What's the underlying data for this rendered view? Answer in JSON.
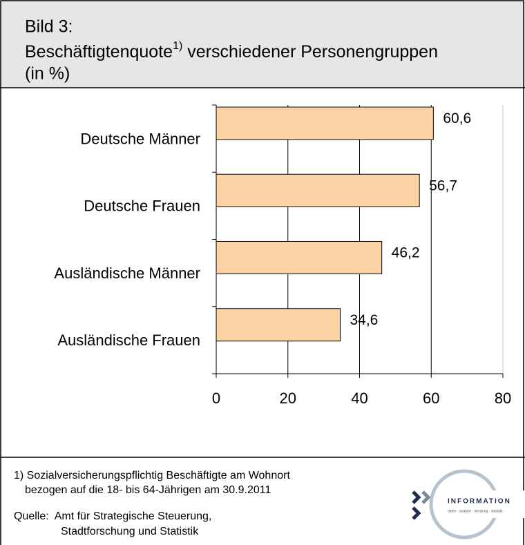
{
  "chart_data": {
    "type": "bar",
    "orientation": "horizontal",
    "title": {
      "label": "Bild 3:",
      "main": "Beschäftigtenquote",
      "superscript": "1)",
      "rest": " verschiedener Personengruppen",
      "unit": "(in %)"
    },
    "categories": [
      "Deutsche Männer",
      "Deutsche Frauen",
      "Ausländische Männer",
      "Ausländische Frauen"
    ],
    "values": [
      60.6,
      56.7,
      46.2,
      34.6
    ],
    "value_labels": [
      "60,6",
      "56,7",
      "46,2",
      "34,6"
    ],
    "color": "#fcd3a4",
    "xlim": [
      0,
      80
    ],
    "xticks": [
      0,
      20,
      40,
      60,
      80
    ],
    "grid": true
  },
  "footnote": [
    "1) Sozialversicherungspflichtig Beschäftigte am Wohnort",
    "bezogen auf die 18- bis 64-Jährigen am 30.9.2011"
  ],
  "source": [
    "Quelle:  Amt für Strategische Steuerung,",
    "Stadtforschung und Statistik"
  ],
  "logo": {
    "name": "INFORMATION",
    "tagline": "daten · analyse · beratung · statistik ·"
  }
}
